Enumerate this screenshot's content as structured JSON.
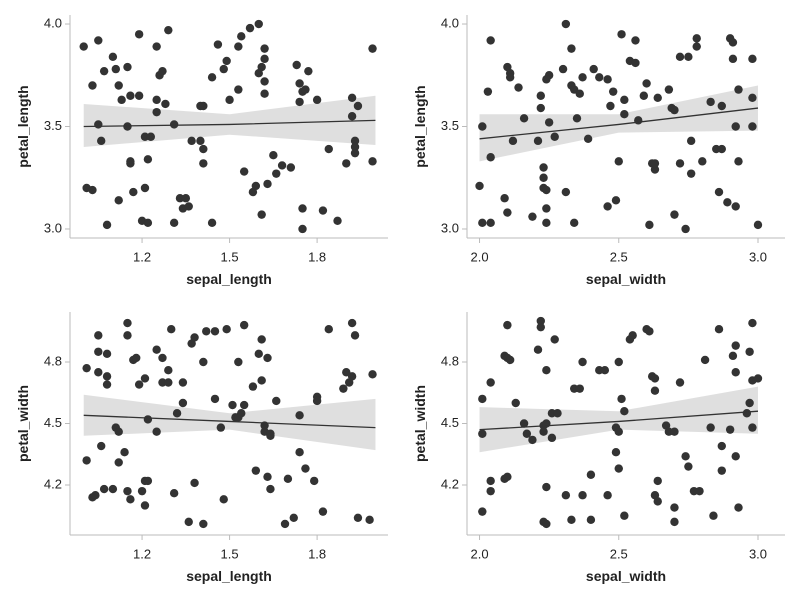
{
  "chart_data": [
    {
      "type": "scatter",
      "x_label": "sepal_length",
      "y_label": "petal_length",
      "color": "#333333",
      "band_color": "#d9d9d9",
      "xlim": [
        0.953,
        2.043
      ],
      "ylim": [
        2.956,
        4.044
      ],
      "xticks": [
        1.2,
        1.5,
        1.8
      ],
      "yticks": [
        {
          "value": 3.0,
          "label": "3.0"
        },
        3.5,
        {
          "value": 4.0,
          "label": "4.0"
        }
      ],
      "x": [
        1.0,
        1.05,
        1.03,
        1.05,
        1.06,
        1.01,
        1.03,
        1.08,
        1.07,
        1.1,
        1.11,
        1.12,
        1.13,
        1.15,
        1.16,
        1.12,
        1.15,
        1.16,
        1.16,
        1.17,
        1.19,
        1.19,
        1.2,
        1.22,
        1.21,
        1.22,
        1.21,
        1.23,
        1.25,
        1.25,
        1.26,
        1.27,
        1.25,
        1.28,
        1.29,
        1.31,
        1.31,
        1.33,
        1.34,
        1.35,
        1.36,
        1.37,
        1.4,
        1.4,
        1.41,
        1.41,
        1.41,
        1.44,
        1.44,
        1.46,
        1.48,
        1.49,
        1.5,
        1.53,
        1.53,
        1.54,
        1.57,
        1.55,
        1.58,
        1.59,
        1.6,
        1.61,
        1.61,
        1.62,
        1.62,
        1.62,
        1.6,
        1.62,
        1.63,
        1.65,
        1.66,
        1.68,
        1.71,
        1.73,
        1.74,
        1.75,
        1.74,
        1.75,
        1.75,
        1.76,
        1.77,
        1.8,
        1.82,
        1.84,
        1.87,
        1.9,
        1.92,
        1.92,
        1.93,
        1.94,
        1.93,
        1.93,
        1.99,
        1.99
      ],
      "y": [
        3.89,
        3.92,
        3.7,
        3.51,
        3.43,
        3.2,
        3.19,
        3.02,
        3.77,
        3.84,
        3.78,
        3.7,
        3.63,
        3.79,
        3.65,
        3.14,
        3.5,
        3.32,
        3.33,
        3.18,
        3.65,
        3.95,
        3.04,
        3.03,
        3.2,
        3.34,
        3.45,
        3.45,
        3.57,
        3.63,
        3.75,
        3.77,
        3.89,
        3.61,
        3.97,
        3.03,
        3.51,
        3.15,
        3.1,
        3.15,
        3.11,
        3.43,
        3.43,
        3.6,
        3.6,
        3.39,
        3.32,
        3.03,
        3.74,
        3.9,
        3.78,
        3.82,
        3.63,
        3.68,
        3.89,
        3.94,
        3.98,
        3.28,
        3.18,
        3.21,
        3.76,
        3.79,
        3.07,
        3.72,
        3.88,
        3.83,
        4.0,
        3.66,
        3.22,
        3.36,
        3.27,
        3.31,
        3.3,
        3.8,
        3.71,
        3.67,
        3.62,
        3.1,
        3.0,
        3.68,
        3.77,
        3.63,
        3.09,
        3.39,
        3.04,
        3.32,
        3.55,
        3.64,
        3.43,
        3.6,
        3.4,
        3.37,
        3.88,
        3.33
      ],
      "fit": {
        "x": [
          1.0,
          1.5,
          2.0
        ],
        "y": [
          3.5,
          3.51,
          3.53
        ],
        "lower": [
          3.4,
          3.46,
          3.41
        ],
        "upper": [
          3.61,
          3.56,
          3.65
        ]
      }
    },
    {
      "type": "scatter",
      "x_label": "sepal_width",
      "y_label": "petal_length",
      "color": "#333333",
      "band_color": "#d9d9d9",
      "xlim": [
        1.955,
        3.097
      ],
      "ylim": [
        2.956,
        4.044
      ],
      "xticks": [
        {
          "value": 2.0,
          "label": "2.0"
        },
        2.5,
        {
          "value": 3.0,
          "label": "3.0"
        }
      ],
      "yticks": [
        {
          "value": 3.0,
          "label": "3.0"
        },
        3.5,
        {
          "value": 4.0,
          "label": "4.0"
        }
      ],
      "x": [
        2.01,
        2.0,
        2.01,
        2.04,
        2.03,
        2.04,
        2.04,
        2.09,
        2.1,
        2.1,
        2.11,
        2.11,
        2.12,
        2.14,
        2.16,
        2.19,
        2.21,
        2.22,
        2.22,
        2.23,
        2.23,
        2.23,
        2.24,
        2.24,
        2.25,
        2.25,
        2.24,
        2.24,
        2.27,
        2.3,
        2.31,
        2.31,
        2.33,
        2.34,
        2.33,
        2.34,
        2.35,
        2.36,
        2.37,
        2.39,
        2.41,
        2.43,
        2.46,
        2.46,
        2.47,
        2.48,
        2.49,
        2.5,
        2.51,
        2.52,
        2.52,
        2.54,
        2.56,
        2.56,
        2.57,
        2.59,
        2.6,
        2.61,
        2.62,
        2.63,
        2.63,
        2.64,
        2.68,
        2.69,
        2.7,
        2.7,
        2.72,
        2.72,
        2.74,
        2.75,
        2.76,
        2.76,
        2.78,
        2.78,
        2.8,
        2.83,
        2.85,
        2.86,
        2.87,
        2.87,
        2.89,
        2.9,
        2.91,
        2.91,
        2.92,
        2.93,
        2.92,
        2.93,
        2.98,
        2.98,
        2.98,
        3.0
      ],
      "y": [
        3.5,
        3.21,
        3.03,
        3.92,
        3.67,
        3.35,
        3.03,
        3.15,
        3.08,
        3.79,
        3.76,
        3.74,
        3.43,
        3.69,
        3.54,
        3.06,
        3.43,
        3.65,
        3.59,
        3.3,
        3.25,
        3.2,
        3.19,
        3.1,
        3.52,
        3.75,
        3.73,
        3.03,
        3.45,
        3.78,
        3.18,
        4.0,
        3.7,
        3.03,
        3.88,
        3.68,
        3.54,
        3.66,
        3.74,
        3.44,
        3.78,
        3.74,
        3.73,
        3.11,
        3.6,
        3.67,
        3.14,
        3.33,
        3.95,
        3.56,
        3.63,
        3.82,
        3.92,
        3.81,
        3.53,
        3.65,
        3.71,
        3.02,
        3.32,
        3.29,
        3.32,
        3.64,
        3.68,
        3.59,
        3.58,
        3.07,
        3.32,
        3.84,
        3.0,
        3.84,
        3.43,
        3.27,
        3.93,
        3.89,
        3.33,
        3.62,
        3.39,
        3.18,
        3.39,
        3.6,
        3.13,
        3.93,
        3.91,
        3.83,
        3.11,
        3.68,
        3.5,
        3.33,
        3.83,
        3.5,
        3.64,
        3.02
      ],
      "fit": {
        "x": [
          2.0,
          2.5,
          3.0
        ],
        "y": [
          3.44,
          3.51,
          3.59
        ],
        "lower": [
          3.33,
          3.47,
          3.48
        ],
        "upper": [
          3.56,
          3.56,
          3.7
        ]
      }
    },
    {
      "type": "scatter",
      "x_label": "sepal_length",
      "y_label": "petal_width",
      "color": "#333333",
      "band_color": "#d9d9d9",
      "xlim": [
        0.953,
        2.043
      ],
      "ylim": [
        3.956,
        5.044
      ],
      "xticks": [
        1.2,
        1.5,
        1.8
      ],
      "yticks": [
        4.2,
        4.5,
        4.8
      ],
      "x": [
        1.01,
        1.01,
        1.03,
        1.04,
        1.05,
        1.05,
        1.05,
        1.06,
        1.07,
        1.08,
        1.08,
        1.08,
        1.1,
        1.11,
        1.12,
        1.12,
        1.14,
        1.15,
        1.15,
        1.15,
        1.16,
        1.17,
        1.18,
        1.19,
        1.2,
        1.21,
        1.21,
        1.22,
        1.22,
        1.21,
        1.25,
        1.25,
        1.27,
        1.27,
        1.29,
        1.29,
        1.3,
        1.31,
        1.32,
        1.34,
        1.34,
        1.36,
        1.37,
        1.38,
        1.38,
        1.41,
        1.41,
        1.42,
        1.45,
        1.45,
        1.47,
        1.48,
        1.49,
        1.51,
        1.52,
        1.53,
        1.54,
        1.53,
        1.55,
        1.55,
        1.58,
        1.59,
        1.6,
        1.61,
        1.62,
        1.61,
        1.62,
        1.63,
        1.63,
        1.64,
        1.64,
        1.64,
        1.66,
        1.69,
        1.7,
        1.72,
        1.74,
        1.74,
        1.76,
        1.79,
        1.8,
        1.8,
        1.82,
        1.84,
        1.89,
        1.9,
        1.91,
        1.92,
        1.93,
        1.92,
        1.94,
        1.98,
        1.99
      ],
      "y": [
        4.77,
        4.32,
        4.14,
        4.15,
        4.93,
        4.85,
        4.75,
        4.39,
        4.18,
        4.84,
        4.73,
        4.69,
        4.18,
        4.48,
        4.46,
        4.31,
        4.36,
        4.93,
        4.99,
        4.17,
        4.13,
        4.81,
        4.82,
        4.69,
        4.17,
        4.22,
        4.1,
        4.22,
        4.52,
        4.72,
        4.46,
        4.86,
        4.82,
        4.7,
        4.76,
        4.7,
        4.96,
        4.16,
        4.55,
        4.6,
        4.7,
        4.02,
        4.89,
        4.92,
        4.21,
        4.01,
        4.8,
        4.95,
        4.62,
        4.95,
        4.48,
        4.13,
        4.96,
        4.59,
        4.53,
        4.53,
        4.55,
        4.8,
        4.59,
        4.98,
        4.68,
        4.27,
        4.84,
        4.91,
        4.49,
        4.71,
        4.46,
        4.24,
        4.82,
        4.44,
        4.18,
        4.45,
        4.61,
        4.01,
        4.23,
        4.04,
        4.54,
        4.36,
        4.28,
        4.22,
        4.63,
        4.61,
        4.07,
        4.96,
        4.67,
        4.75,
        4.7,
        4.99,
        4.93,
        4.73,
        4.04,
        4.03,
        4.74
      ],
      "fit": {
        "x": [
          1.0,
          1.5,
          2.0
        ],
        "y": [
          4.54,
          4.51,
          4.48
        ],
        "lower": [
          4.44,
          4.47,
          4.37
        ],
        "upper": [
          4.64,
          4.55,
          4.62
        ]
      }
    },
    {
      "type": "scatter",
      "x_label": "sepal_width",
      "y_label": "petal_width",
      "color": "#333333",
      "band_color": "#d9d9d9",
      "xlim": [
        1.955,
        3.097
      ],
      "ylim": [
        3.956,
        5.044
      ],
      "xticks": [
        {
          "value": 2.0,
          "label": "2.0"
        },
        2.5,
        {
          "value": 3.0,
          "label": "3.0"
        }
      ],
      "yticks": [
        4.2,
        4.5,
        4.8
      ],
      "x": [
        2.01,
        2.01,
        2.01,
        2.04,
        2.04,
        2.04,
        2.09,
        2.1,
        2.1,
        2.09,
        2.1,
        2.11,
        2.13,
        2.16,
        2.17,
        2.19,
        2.21,
        2.22,
        2.22,
        2.23,
        2.23,
        2.23,
        2.24,
        2.24,
        2.24,
        2.24,
        2.26,
        2.26,
        2.27,
        2.28,
        2.31,
        2.33,
        2.34,
        2.36,
        2.37,
        2.37,
        2.4,
        2.4,
        2.43,
        2.45,
        2.46,
        2.49,
        2.49,
        2.5,
        2.5,
        2.52,
        2.51,
        2.5,
        2.52,
        2.54,
        2.55,
        2.6,
        2.61,
        2.62,
        2.63,
        2.63,
        2.64,
        2.63,
        2.64,
        2.67,
        2.68,
        2.7,
        2.7,
        2.7,
        2.72,
        2.74,
        2.75,
        2.77,
        2.79,
        2.81,
        2.83,
        2.84,
        2.86,
        2.87,
        2.87,
        2.9,
        2.92,
        2.91,
        2.92,
        2.92,
        2.93,
        2.96,
        2.97,
        2.97,
        2.98,
        2.98,
        2.98,
        3.0
      ],
      "y": [
        4.45,
        4.07,
        4.62,
        4.7,
        4.22,
        4.17,
        4.23,
        4.98,
        4.24,
        4.83,
        4.82,
        4.81,
        4.6,
        4.5,
        4.45,
        4.42,
        4.86,
        5.0,
        4.97,
        4.49,
        4.46,
        4.02,
        4.01,
        4.76,
        4.5,
        4.19,
        4.43,
        4.55,
        4.91,
        4.55,
        4.15,
        4.03,
        4.67,
        4.67,
        4.8,
        4.15,
        4.03,
        4.25,
        4.76,
        4.76,
        4.15,
        4.36,
        4.48,
        4.8,
        4.46,
        4.56,
        4.62,
        4.28,
        4.05,
        4.91,
        4.93,
        4.96,
        4.95,
        4.73,
        4.72,
        4.15,
        4.12,
        4.66,
        4.22,
        4.49,
        4.46,
        4.09,
        4.02,
        4.46,
        4.7,
        4.34,
        4.29,
        4.17,
        4.17,
        4.81,
        4.48,
        4.05,
        4.96,
        4.27,
        4.39,
        4.47,
        4.88,
        4.83,
        4.75,
        4.34,
        4.09,
        4.55,
        4.6,
        4.85,
        4.48,
        4.99,
        4.71,
        4.72
      ],
      "fit": {
        "x": [
          2.0,
          2.5,
          3.0
        ],
        "y": [
          4.47,
          4.51,
          4.56
        ],
        "lower": [
          4.36,
          4.47,
          4.45
        ],
        "upper": [
          4.58,
          4.56,
          4.68
        ]
      }
    }
  ]
}
